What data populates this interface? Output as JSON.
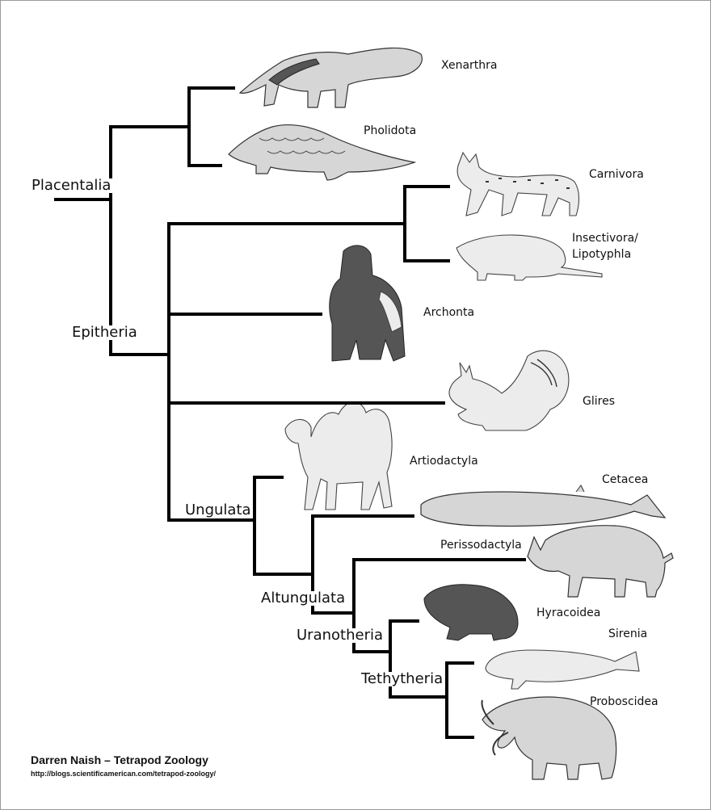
{
  "clades": {
    "placentalia": "Placentalia",
    "epitheria": "Epitheria",
    "ungulata": "Ungulata",
    "altungulata": "Altungulata",
    "uranotheria": "Uranotheria",
    "tethytheria": "Tethytheria"
  },
  "taxa": {
    "xenarthra": "Xenarthra",
    "pholidota": "Pholidota",
    "carnivora": "Carnivora",
    "insectivora_line1": "Insectivora/",
    "insectivora_line2": "Lipotyphla",
    "archonta": "Archonta",
    "glires": "Glires",
    "artiodactyla": "Artiodactyla",
    "cetacea": "Cetacea",
    "perissodactyla": "Perissodactyla",
    "hyracoidea": "Hyracoidea",
    "sirenia": "Sirenia",
    "proboscidea": "Proboscidea"
  },
  "illustrations": [
    "giant-anteater",
    "pangolin",
    "lynx",
    "shrew",
    "gorilla",
    "squirrel",
    "camel",
    "whale",
    "rhinoceros",
    "hyrax",
    "dugong",
    "mammoth"
  ],
  "credit": {
    "author": "Darren Naish – Tetrapod Zoology",
    "url": "http://blogs.scientificamerican.com/tetrapod-zoology/"
  },
  "colors": {
    "branch": "#000000",
    "border": "#9a9a9a",
    "background": "#ffffff"
  }
}
